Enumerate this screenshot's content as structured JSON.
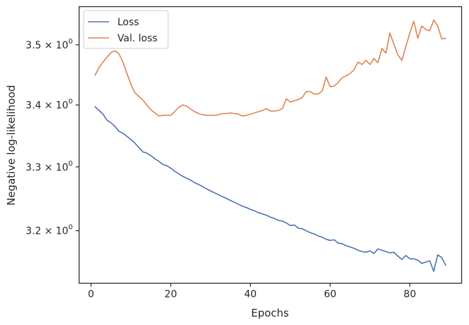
{
  "chart_data": {
    "type": "line",
    "title": "",
    "xlabel": "Epochs",
    "ylabel": "Negative log-likelihood",
    "xlim": [
      -3,
      93
    ],
    "ylim": [
      3.12,
      3.565
    ],
    "y_scale": "log",
    "grid": false,
    "legend_position": "top-left",
    "x_ticks": [
      0,
      20,
      40,
      60,
      80
    ],
    "x_tick_labels": [
      "0",
      "20",
      "40",
      "60",
      "80"
    ],
    "y_ticks": [
      {
        "value": 3.2,
        "mantissa": "3.2",
        "op": " × ",
        "base": "10",
        "exp": "0"
      },
      {
        "value": 3.3,
        "mantissa": "3.3",
        "op": " × ",
        "base": "10",
        "exp": "0"
      },
      {
        "value": 3.4,
        "mantissa": "3.4",
        "op": " × ",
        "base": "10",
        "exp": "0"
      },
      {
        "value": 3.5,
        "mantissa": "3.5",
        "op": " × ",
        "base": "10",
        "exp": "0"
      }
    ],
    "x": [
      1,
      2,
      3,
      4,
      5,
      6,
      7,
      8,
      9,
      10,
      11,
      12,
      13,
      14,
      15,
      16,
      17,
      18,
      19,
      20,
      21,
      22,
      23,
      24,
      25,
      26,
      27,
      28,
      29,
      30,
      31,
      32,
      33,
      34,
      35,
      36,
      37,
      38,
      39,
      40,
      41,
      42,
      43,
      44,
      45,
      46,
      47,
      48,
      49,
      50,
      51,
      52,
      53,
      54,
      55,
      56,
      57,
      58,
      59,
      60,
      61,
      62,
      63,
      64,
      65,
      66,
      67,
      68,
      69,
      70,
      71,
      72,
      73,
      74,
      75,
      76,
      77,
      78,
      79,
      80,
      81,
      82,
      83,
      84,
      85,
      86,
      87,
      88,
      89
    ],
    "series": [
      {
        "name": "Loss",
        "color": "#4c72b0",
        "values": [
          3.397,
          3.391,
          3.385,
          3.375,
          3.371,
          3.365,
          3.357,
          3.354,
          3.349,
          3.344,
          3.338,
          3.331,
          3.324,
          3.322,
          3.318,
          3.313,
          3.309,
          3.304,
          3.302,
          3.298,
          3.293,
          3.289,
          3.285,
          3.282,
          3.279,
          3.275,
          3.272,
          3.269,
          3.265,
          3.262,
          3.259,
          3.256,
          3.253,
          3.25,
          3.247,
          3.244,
          3.241,
          3.238,
          3.236,
          3.233,
          3.231,
          3.228,
          3.226,
          3.224,
          3.221,
          3.219,
          3.216,
          3.215,
          3.212,
          3.208,
          3.209,
          3.204,
          3.203,
          3.2,
          3.197,
          3.195,
          3.192,
          3.19,
          3.187,
          3.185,
          3.186,
          3.181,
          3.18,
          3.177,
          3.175,
          3.173,
          3.17,
          3.168,
          3.167,
          3.169,
          3.165,
          3.172,
          3.17,
          3.168,
          3.166,
          3.167,
          3.161,
          3.156,
          3.162,
          3.157,
          3.157,
          3.155,
          3.15,
          3.152,
          3.154,
          3.138,
          3.163,
          3.159,
          3.147
        ]
      },
      {
        "name": "Val. loss",
        "color": "#dd8452",
        "values": [
          3.449,
          3.462,
          3.471,
          3.479,
          3.487,
          3.49,
          3.485,
          3.471,
          3.452,
          3.434,
          3.42,
          3.414,
          3.408,
          3.4,
          3.392,
          3.387,
          3.382,
          3.383,
          3.383,
          3.383,
          3.389,
          3.396,
          3.4,
          3.398,
          3.393,
          3.389,
          3.386,
          3.384,
          3.383,
          3.383,
          3.383,
          3.384,
          3.386,
          3.386,
          3.387,
          3.386,
          3.385,
          3.382,
          3.383,
          3.385,
          3.387,
          3.389,
          3.391,
          3.394,
          3.39,
          3.39,
          3.391,
          3.394,
          3.41,
          3.405,
          3.407,
          3.409,
          3.412,
          3.422,
          3.422,
          3.418,
          3.418,
          3.423,
          3.446,
          3.43,
          3.431,
          3.437,
          3.445,
          3.448,
          3.452,
          3.458,
          3.471,
          3.467,
          3.474,
          3.467,
          3.477,
          3.47,
          3.494,
          3.486,
          3.52,
          3.501,
          3.483,
          3.474,
          3.497,
          3.52,
          3.54,
          3.511,
          3.532,
          3.526,
          3.524,
          3.542,
          3.532,
          3.51,
          3.511
        ]
      }
    ]
  }
}
